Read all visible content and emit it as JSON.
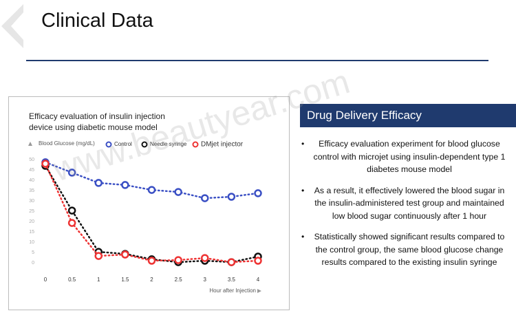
{
  "header": {
    "title": "Clinical Data"
  },
  "chart_data": {
    "type": "line",
    "title": [
      "Efficacy evaluation of insulin injection",
      "device using diabetic mouse model"
    ],
    "y_label": "Blood Glucose (mg/dL)",
    "x_label": "Hour after Injection",
    "x": [
      0,
      0.5,
      1,
      1.5,
      2,
      2.5,
      3,
      3.5,
      4
    ],
    "series": [
      {
        "name": "Control",
        "color": "#3a4fc4",
        "values": [
          48.7,
          43.7,
          38.7,
          37.7,
          35.3,
          34.3,
          31.3,
          32,
          33.7
        ]
      },
      {
        "name": "Needle syringe",
        "color": "#111111",
        "values": [
          47,
          25.3,
          5.3,
          4.3,
          1.7,
          0.3,
          1,
          0.3,
          3
        ]
      },
      {
        "name": "DMjet injector",
        "color": "#ee3333",
        "values": [
          48,
          19.3,
          3.3,
          4,
          1,
          1.3,
          2.3,
          0.3,
          1
        ]
      }
    ],
    "xlim": [
      0,
      4
    ],
    "xticks": [
      0,
      0.5,
      1,
      1.5,
      2,
      2.5,
      3,
      3.5,
      4
    ],
    "ylim": [
      0,
      50
    ],
    "yticks": [
      0,
      5,
      10,
      15,
      20,
      25,
      30,
      35,
      40,
      45,
      50
    ],
    "legend": "top"
  },
  "panel": {
    "title": "Drug Delivery Efficacy",
    "bullets": [
      "Efficacy evaluation experiment for blood glucose control with microjet using insulin-dependent type 1 diabetes mouse model",
      "As a result, it effectively lowered the blood sugar in the insulin-administered test group and maintained low blood sugar continuously after 1 hour",
      "Statistically showed significant results compared to the control group, the same blood glucose change results compared to the existing insulin syringe"
    ]
  },
  "watermark": "www.beautyear.com"
}
